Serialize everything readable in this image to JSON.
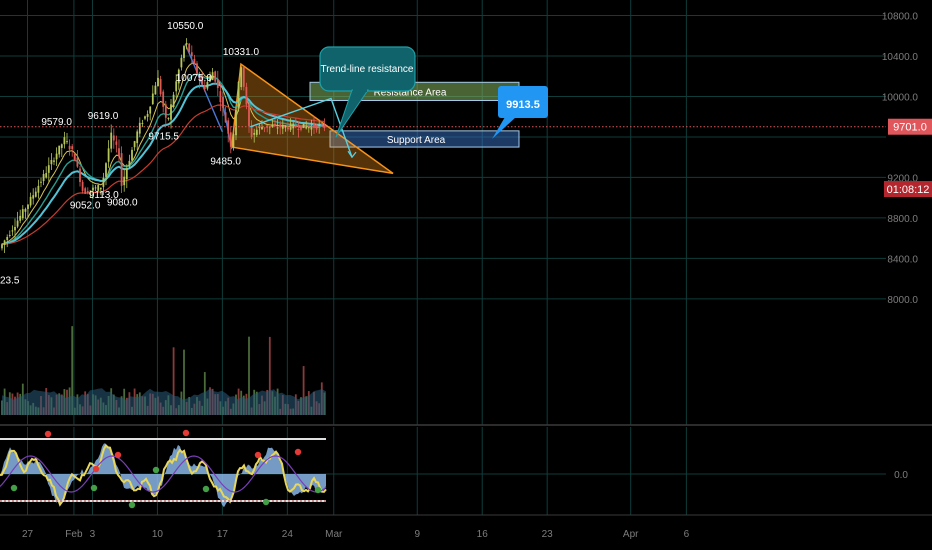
{
  "colors": {
    "background": "#000000",
    "grid": "#0f3d3a",
    "axis_text": "#7d7d7d",
    "candle_up": "#b7c65a",
    "candle_down": "#e05a55",
    "ema_red": "#c43d2e",
    "ema_yellow": "#d7c255",
    "ema_cyan": "#52c3d6",
    "ema_teal": "#2a9d8f",
    "last_price": "#e0565b",
    "resistance_fill": "#86b45e",
    "support_fill": "#3a73c7",
    "callout_teal": "#10636b",
    "callout_blue": "#2196f3",
    "wedge_orange": "#f7931a",
    "volume": "#2a5d7a",
    "osc_fill": "#8ab6e8",
    "osc_yellow": "#e8d75a",
    "osc_purple": "#7a3fb8",
    "osc_band": "#e0e0e0",
    "osc_lower_band": "#b03030"
  },
  "annotations": {
    "callout_trendline": "Trend-line resistance",
    "callout_price": "9913.5",
    "resistance_label": "Resistance Area",
    "support_label": "Support Area",
    "last_price": "9701.0",
    "countdown": "01:08:12"
  },
  "chart_data": {
    "type": "candlestick",
    "title": "",
    "xlabel": "",
    "ylabel": "",
    "x_tick_labels": [
      "27",
      "Feb",
      "3",
      "10",
      "17",
      "24",
      "Mar",
      "9",
      "16",
      "23",
      "Apr",
      "6"
    ],
    "y_tick_labels": [
      "10800.0",
      "10400.0",
      "10000.0",
      "9200.0",
      "8800.0",
      "8400.0",
      "8000.0"
    ],
    "ylim": [
      8000,
      10850
    ],
    "oscillator_tick_labels": [
      "0.0"
    ],
    "grid": true,
    "price_path": [
      {
        "x": "Jan 24",
        "y": 8500
      },
      {
        "x": "Jan 27",
        "y": 8930
      },
      {
        "x": "Jan 30",
        "y": 9420
      },
      {
        "x": "Jan 31",
        "y": 9579
      },
      {
        "x": "Feb 1",
        "y": 9430
      },
      {
        "x": "Feb 2",
        "y": 9052
      },
      {
        "x": "Feb 4",
        "y": 9113
      },
      {
        "x": "Feb 5",
        "y": 9619
      },
      {
        "x": "Feb 6",
        "y": 9400
      },
      {
        "x": "Feb 6",
        "y": 9080
      },
      {
        "x": "Feb 8",
        "y": 9700
      },
      {
        "x": "Feb 9",
        "y": 9850
      },
      {
        "x": "Feb 10",
        "y": 10200
      },
      {
        "x": "Feb 11",
        "y": 9715.5
      },
      {
        "x": "Feb 13",
        "y": 10550
      },
      {
        "x": "Feb 14",
        "y": 10300
      },
      {
        "x": "Feb 15",
        "y": 10075
      },
      {
        "x": "Feb 16",
        "y": 10250
      },
      {
        "x": "Feb 17",
        "y": 9900
      },
      {
        "x": "Feb 18",
        "y": 9485
      },
      {
        "x": "Feb 19",
        "y": 10331
      },
      {
        "x": "Feb 20",
        "y": 9600
      },
      {
        "x": "Feb 21",
        "y": 9701
      }
    ],
    "price_labels": [
      {
        "text": "10550.0",
        "x": "Feb 13",
        "y": 10550
      },
      {
        "text": "10331.0",
        "x": "Feb 19",
        "y": 10331
      },
      {
        "text": "10075.0",
        "x": "Feb 15",
        "y": 10075
      },
      {
        "text": "9579.0",
        "x": "Jan 31",
        "y": 9579
      },
      {
        "text": "9619.0",
        "x": "Feb 5",
        "y": 9619
      },
      {
        "text": "9715.5",
        "x": "Feb 11",
        "y": 9715.5
      },
      {
        "text": "9485.0",
        "x": "Feb 18",
        "y": 9485
      },
      {
        "text": "9052.0",
        "x": "Feb 2",
        "y": 9052
      },
      {
        "text": "9113.0",
        "x": "Feb 4",
        "y": 9113
      },
      {
        "text": "9080.0",
        "x": "Feb 6",
        "y": 9080
      },
      {
        "text": "23.5",
        "x": "Jan 24",
        "y": 8230
      }
    ],
    "resistance_area": [
      9960,
      10140
    ],
    "support_area": [
      9500,
      9660
    ],
    "last_price": 9701.0
  }
}
